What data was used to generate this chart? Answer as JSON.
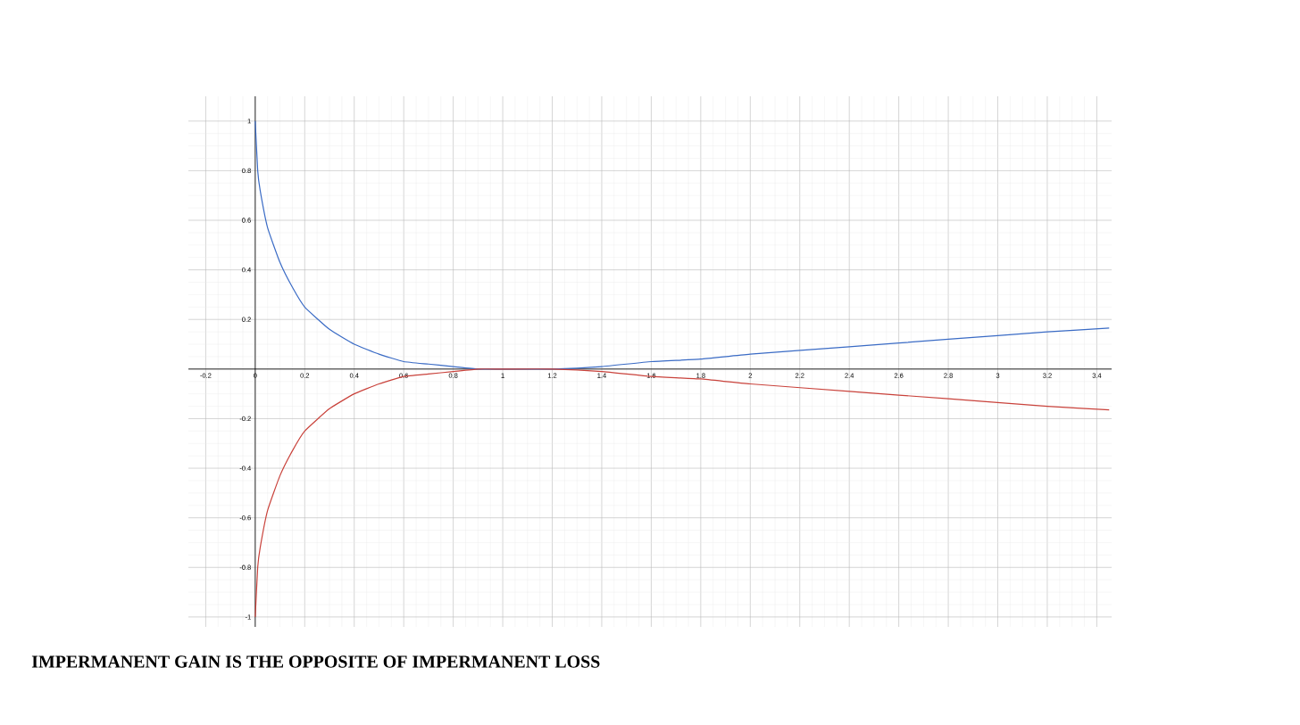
{
  "chart_data": {
    "type": "line",
    "title": "IMPERMANENT GAIN IS THE OPPOSITE OF IMPERMANENT LOSS",
    "x": [
      0,
      0.01,
      0.02,
      0.05,
      0.1,
      0.15,
      0.2,
      0.3,
      0.4,
      0.5,
      0.6,
      0.7,
      0.8,
      0.9,
      1,
      1.2,
      1.4,
      1.6,
      1.8,
      2,
      2.4,
      2.8,
      3.2,
      3.45
    ],
    "series": [
      {
        "color": "#3a6bc5",
        "values": [
          1,
          0.8,
          0.72,
          0.57,
          0.43,
          0.33,
          0.25,
          0.16,
          0.1,
          0.06,
          0.03,
          0.02,
          0.01,
          0,
          0,
          0,
          0.01,
          0.03,
          0.04,
          0.06,
          0.09,
          0.12,
          0.15,
          0.165
        ]
      },
      {
        "color": "#c9423b",
        "values": [
          -1,
          -0.8,
          -0.72,
          -0.57,
          -0.43,
          -0.33,
          -0.25,
          -0.16,
          -0.1,
          -0.06,
          -0.03,
          -0.02,
          -0.01,
          0,
          0,
          0,
          -0.01,
          -0.03,
          -0.04,
          -0.06,
          -0.09,
          -0.12,
          -0.15,
          -0.165
        ]
      }
    ],
    "xlim": [
      -0.27,
      3.46
    ],
    "ylim": [
      -1.04,
      1.1
    ],
    "xticks": [
      -0.2,
      0,
      0.2,
      0.4,
      0.6,
      0.8,
      1,
      1.2,
      1.4,
      1.6,
      1.8,
      2,
      2.2,
      2.4,
      2.6,
      2.8,
      3,
      3.2,
      3.4
    ],
    "yticks": [
      -1,
      -0.8,
      -0.6,
      -0.4,
      -0.2,
      {
        "value": 0,
        "label": null
      },
      0.2,
      0.4,
      0.6,
      0.8,
      1
    ],
    "grid": true
  }
}
